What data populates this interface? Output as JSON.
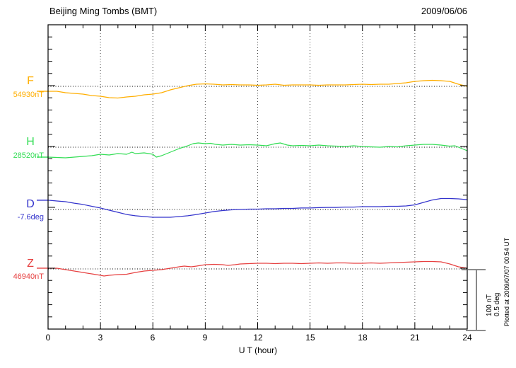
{
  "chart_data": {
    "type": "line",
    "title": "Beijing Ming Tombs (BMT)",
    "date": "2009/06/06",
    "xlabel": "U T (hour)",
    "x_range": [
      0,
      24
    ],
    "x_major_step": 3,
    "x_minor_step": 1,
    "x_tick_labels": [
      "0",
      "3",
      "6",
      "9",
      "12",
      "15",
      "18",
      "21",
      "24"
    ],
    "grid_hours": [
      3,
      6,
      9,
      12,
      15,
      18,
      21
    ],
    "grid": "vertical dotted lines every 3 hours; horizontal dotted baseline per trace",
    "amplitude_scale": {
      "nT_per_division": 100,
      "deg_per_division": 0.5
    },
    "scale_bar": {
      "line1": "100 nT",
      "line2": "0.5 deg"
    },
    "plotted_at": "Plotted at 2009/07/07 00:54 UT",
    "legend_position": "left margin, one colored label per trace",
    "series": [
      {
        "name": "F",
        "base_value": "54930nT",
        "unit": "nT",
        "color": "#FFAE00",
        "offset_note": "offset from base value in nT vs UT hour",
        "points": [
          [
            0,
            -8.1
          ],
          [
            0.5,
            -8.1
          ],
          [
            1,
            -10.5
          ],
          [
            1.5,
            -11.6
          ],
          [
            2,
            -12.8
          ],
          [
            2.5,
            -15.1
          ],
          [
            3,
            -16.3
          ],
          [
            3.5,
            -18.6
          ],
          [
            4,
            -19.2
          ],
          [
            4.5,
            -17.4
          ],
          [
            5,
            -16.3
          ],
          [
            5.5,
            -14
          ],
          [
            6,
            -12.8
          ],
          [
            6.5,
            -10.5
          ],
          [
            7,
            -5.8
          ],
          [
            7.5,
            -2.3
          ],
          [
            8,
            1.2
          ],
          [
            8.5,
            3.5
          ],
          [
            9,
            4.1
          ],
          [
            9.5,
            3.5
          ],
          [
            10,
            2.3
          ],
          [
            10.5,
            2.9
          ],
          [
            11,
            2.3
          ],
          [
            11.5,
            2.3
          ],
          [
            12,
            1.7
          ],
          [
            12.5,
            2.3
          ],
          [
            13,
            3.5
          ],
          [
            13.5,
            1.7
          ],
          [
            14,
            2.3
          ],
          [
            14.5,
            2.3
          ],
          [
            15,
            2.3
          ],
          [
            15.5,
            1.7
          ],
          [
            16,
            2.3
          ],
          [
            16.5,
            2.3
          ],
          [
            17,
            2.3
          ],
          [
            17.5,
            2.9
          ],
          [
            18,
            3.5
          ],
          [
            18.5,
            2.9
          ],
          [
            19,
            3.5
          ],
          [
            19.5,
            3.5
          ],
          [
            20,
            4.7
          ],
          [
            20.5,
            5.8
          ],
          [
            21,
            8.1
          ],
          [
            21.5,
            9.3
          ],
          [
            22,
            9.9
          ],
          [
            22.5,
            9.3
          ],
          [
            23,
            8.1
          ],
          [
            23.5,
            3.5
          ],
          [
            24,
            0
          ]
        ]
      },
      {
        "name": "H",
        "base_value": "28520nT",
        "unit": "nT",
        "color": "#33DD55",
        "offset_note": "offset from base value in nT vs UT hour",
        "points": [
          [
            0,
            -16.3
          ],
          [
            0.5,
            -16.9
          ],
          [
            1,
            -17.4
          ],
          [
            1.5,
            -16.3
          ],
          [
            2,
            -15.1
          ],
          [
            2.5,
            -14
          ],
          [
            3,
            -11.6
          ],
          [
            3.5,
            -12.8
          ],
          [
            4,
            -10.5
          ],
          [
            4.5,
            -11.6
          ],
          [
            4.8,
            -8.1
          ],
          [
            5,
            -10.5
          ],
          [
            5.5,
            -9.3
          ],
          [
            6,
            -11.6
          ],
          [
            6.2,
            -16.3
          ],
          [
            6.5,
            -14
          ],
          [
            7,
            -8.1
          ],
          [
            7.5,
            -2.3
          ],
          [
            8,
            2.3
          ],
          [
            8.3,
            5.8
          ],
          [
            8.6,
            7
          ],
          [
            9,
            5.8
          ],
          [
            9.3,
            6.4
          ],
          [
            9.6,
            4.7
          ],
          [
            10,
            3.5
          ],
          [
            10.5,
            4.7
          ],
          [
            11,
            3.5
          ],
          [
            11.5,
            4.1
          ],
          [
            12,
            3.5
          ],
          [
            12.5,
            2.3
          ],
          [
            13,
            5.8
          ],
          [
            13.3,
            7
          ],
          [
            13.7,
            3.5
          ],
          [
            14,
            2.3
          ],
          [
            14.5,
            2.9
          ],
          [
            15,
            2.3
          ],
          [
            15.5,
            3.5
          ],
          [
            16,
            2.3
          ],
          [
            16.5,
            1.7
          ],
          [
            17,
            1.2
          ],
          [
            17.5,
            2.3
          ],
          [
            18,
            1.2
          ],
          [
            18.5,
            0.6
          ],
          [
            19,
            0
          ],
          [
            19.5,
            1.2
          ],
          [
            20,
            0.6
          ],
          [
            20.5,
            2.3
          ],
          [
            21,
            3.5
          ],
          [
            21.5,
            4.7
          ],
          [
            22,
            4.7
          ],
          [
            22.5,
            3.5
          ],
          [
            23,
            1.7
          ],
          [
            23.3,
            2.3
          ],
          [
            23.6,
            -1.2
          ],
          [
            24,
            -5.8
          ]
        ]
      },
      {
        "name": "D",
        "base_value": "-7.6deg",
        "unit": "deg",
        "color": "#3333CC",
        "offset_note": "offset from base value in degrees vs UT hour",
        "points": [
          [
            0,
            0.076
          ],
          [
            0.5,
            0.07
          ],
          [
            1,
            0.064
          ],
          [
            1.5,
            0.052
          ],
          [
            2,
            0.041
          ],
          [
            2.5,
            0.026
          ],
          [
            3,
            0.012
          ],
          [
            3.5,
            -0.006
          ],
          [
            4,
            -0.023
          ],
          [
            4.5,
            -0.041
          ],
          [
            5,
            -0.052
          ],
          [
            5.5,
            -0.058
          ],
          [
            6,
            -0.064
          ],
          [
            6.5,
            -0.064
          ],
          [
            7,
            -0.064
          ],
          [
            7.5,
            -0.058
          ],
          [
            8,
            -0.052
          ],
          [
            8.5,
            -0.041
          ],
          [
            9,
            -0.029
          ],
          [
            9.5,
            -0.017
          ],
          [
            10,
            -0.009
          ],
          [
            10.5,
            -0.003
          ],
          [
            11,
            0
          ],
          [
            11.5,
            0.003
          ],
          [
            12,
            0.003
          ],
          [
            12.5,
            0.006
          ],
          [
            13,
            0.006
          ],
          [
            13.5,
            0.009
          ],
          [
            14,
            0.009
          ],
          [
            14.5,
            0.012
          ],
          [
            15,
            0.012
          ],
          [
            15.5,
            0.015
          ],
          [
            16,
            0.017
          ],
          [
            16.5,
            0.017
          ],
          [
            17,
            0.02
          ],
          [
            17.5,
            0.02
          ],
          [
            18,
            0.023
          ],
          [
            18.5,
            0.023
          ],
          [
            19,
            0.023
          ],
          [
            19.5,
            0.026
          ],
          [
            20,
            0.026
          ],
          [
            20.5,
            0.029
          ],
          [
            21,
            0.038
          ],
          [
            21.5,
            0.058
          ],
          [
            22,
            0.078
          ],
          [
            22.5,
            0.09
          ],
          [
            23,
            0.09
          ],
          [
            23.5,
            0.087
          ],
          [
            24,
            0.081
          ]
        ]
      },
      {
        "name": "Z",
        "base_value": "46940nT",
        "unit": "nT",
        "color": "#E64040",
        "offset_note": "offset from base value in nT vs UT hour",
        "points": [
          [
            0,
            1.2
          ],
          [
            0.5,
            1.2
          ],
          [
            1,
            -1.2
          ],
          [
            1.5,
            -3.5
          ],
          [
            2,
            -5.8
          ],
          [
            2.5,
            -8.1
          ],
          [
            3,
            -10.5
          ],
          [
            3.2,
            -11.6
          ],
          [
            3.5,
            -10.5
          ],
          [
            4,
            -9.3
          ],
          [
            4.5,
            -8.7
          ],
          [
            5,
            -5.8
          ],
          [
            5.5,
            -3.5
          ],
          [
            6,
            -2.3
          ],
          [
            6.5,
            -1.2
          ],
          [
            7,
            1.2
          ],
          [
            7.5,
            3.5
          ],
          [
            7.8,
            4.7
          ],
          [
            8.2,
            3.5
          ],
          [
            8.5,
            4.7
          ],
          [
            9,
            7
          ],
          [
            9.5,
            7.6
          ],
          [
            10,
            7
          ],
          [
            10.3,
            5.8
          ],
          [
            10.7,
            7
          ],
          [
            11,
            8.1
          ],
          [
            11.5,
            8.7
          ],
          [
            12,
            9.3
          ],
          [
            12.5,
            9.3
          ],
          [
            13,
            8.7
          ],
          [
            13.5,
            9.3
          ],
          [
            14,
            9.3
          ],
          [
            14.5,
            8.7
          ],
          [
            15,
            9.3
          ],
          [
            15.5,
            9.9
          ],
          [
            16,
            9.3
          ],
          [
            16.5,
            9.9
          ],
          [
            17,
            9.9
          ],
          [
            17.5,
            9.3
          ],
          [
            18,
            9.3
          ],
          [
            18.5,
            9.9
          ],
          [
            19,
            9.3
          ],
          [
            19.5,
            9.9
          ],
          [
            20,
            10.5
          ],
          [
            20.5,
            11
          ],
          [
            21,
            11.6
          ],
          [
            21.5,
            12.2
          ],
          [
            22,
            12.2
          ],
          [
            22.5,
            11.6
          ],
          [
            23,
            8.1
          ],
          [
            23.5,
            3.5
          ],
          [
            24,
            1.2
          ]
        ]
      }
    ]
  }
}
